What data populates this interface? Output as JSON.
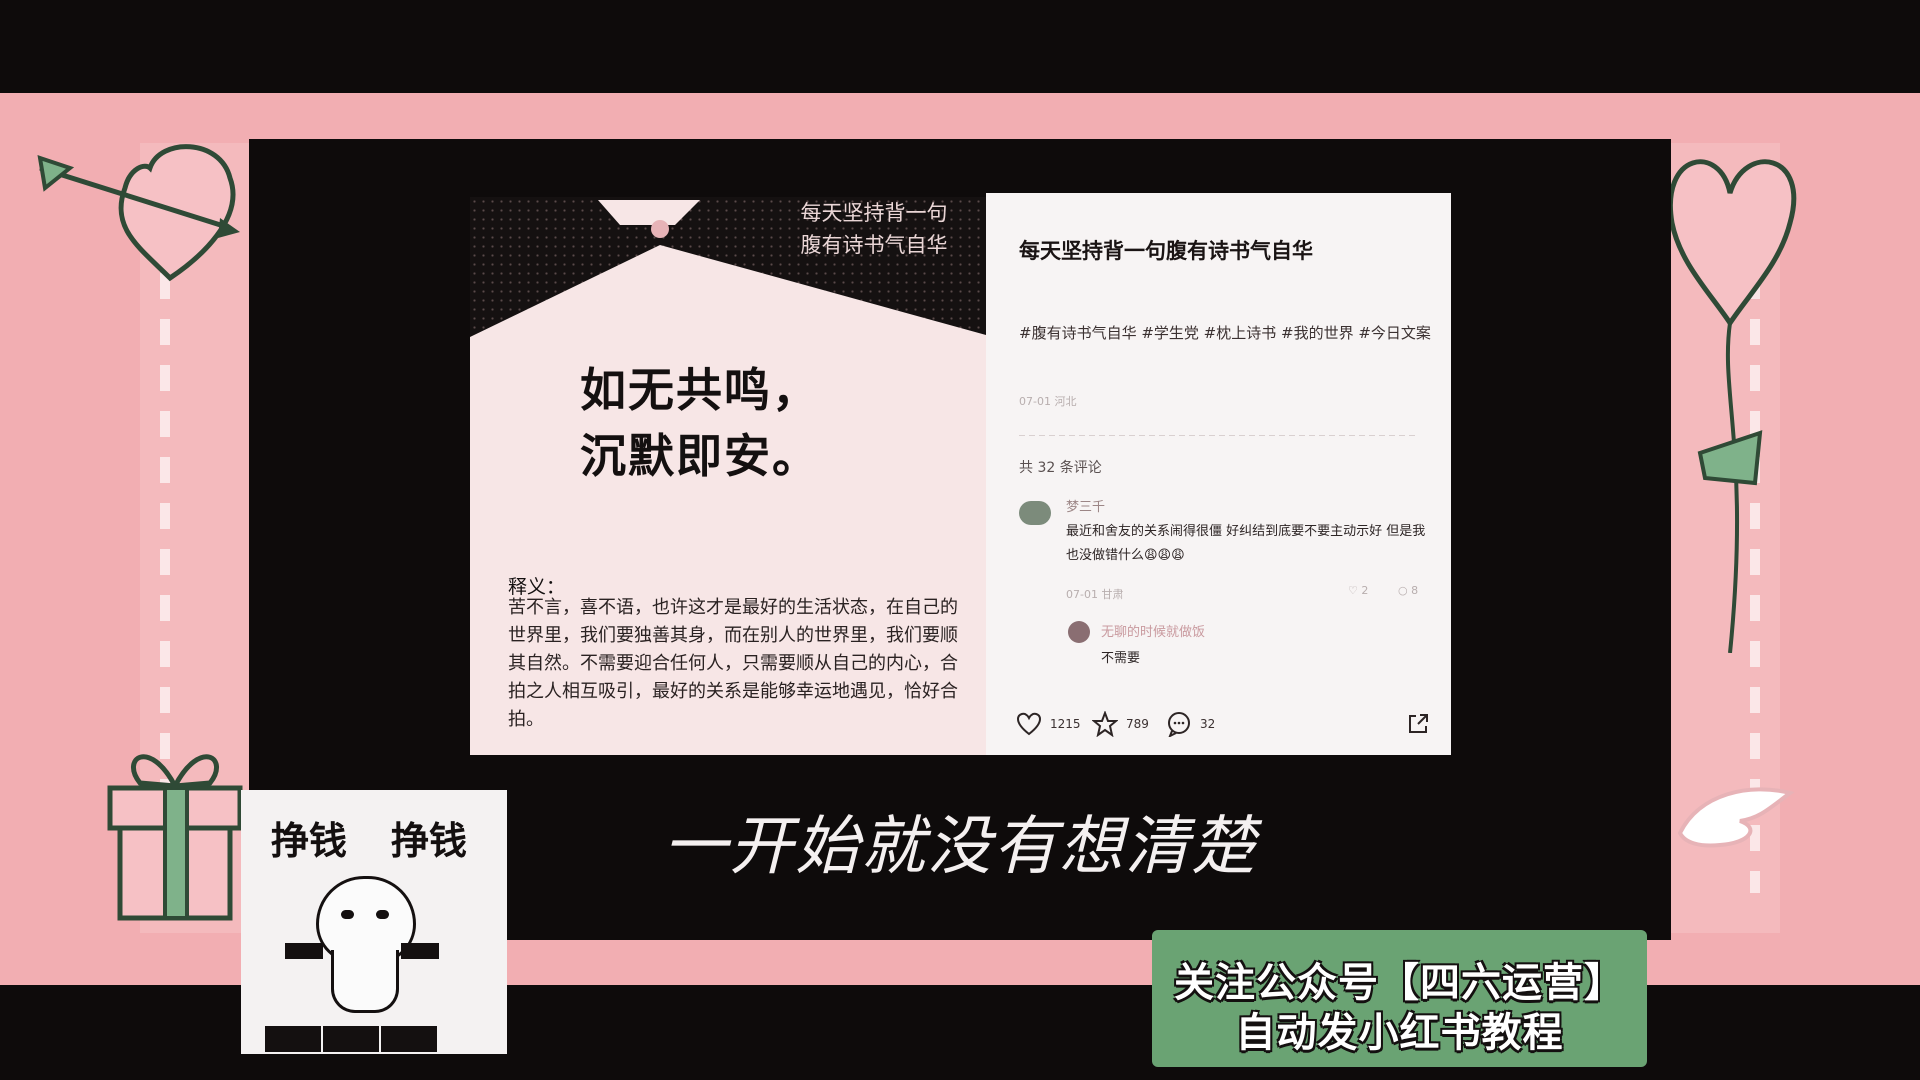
{
  "poster": {
    "top_line1": "每天坚持背一句",
    "top_line2": "腹有诗书气自华",
    "main_line1": "如无共鸣，",
    "main_line2": "沉默即安。",
    "explain_title": "释义：",
    "explain_text": "苦不言，喜不语，也许这才是最好的生活状态，在自己的世界里，我们要独善其身，而在别人的世界里，我们要顺其自然。不需要迎合任何人，只需要顺从自己的内心，合拍之人相互吸引，最好的关系是能够幸运地遇见，恰好合拍。"
  },
  "note": {
    "title": "每天坚持背一句腹有诗书气自华",
    "tags": "#腹有诗书气自华 #学生党 #枕上诗书 #我的世界 #今日文案",
    "meta": "07-01 河北",
    "comment_count": "共 32 条评论",
    "comment": {
      "user": "梦三千",
      "text": "最近和舍友的关系闹得很僵 好纠结到底要不要主动示好 但是我也没做错什么😩😩😩",
      "date": "07-01 甘肃",
      "likes": "2",
      "replies": "8"
    },
    "reply": {
      "user": "无聊的时候就做饭",
      "text": "不需要"
    },
    "actions": {
      "likes": "1215",
      "stars": "789",
      "comments": "32"
    }
  },
  "subtitle": "一开始就没有想清楚",
  "sticker": {
    "left_word": "挣钱",
    "right_word": "挣钱"
  },
  "banner": {
    "line1": "关注公众号【四六运营】",
    "line2": "自动发小红书教程"
  },
  "colors": {
    "frame_pink": "#f2aeb2",
    "banner_green": "#6aa373",
    "background": "#0e0b0b"
  }
}
